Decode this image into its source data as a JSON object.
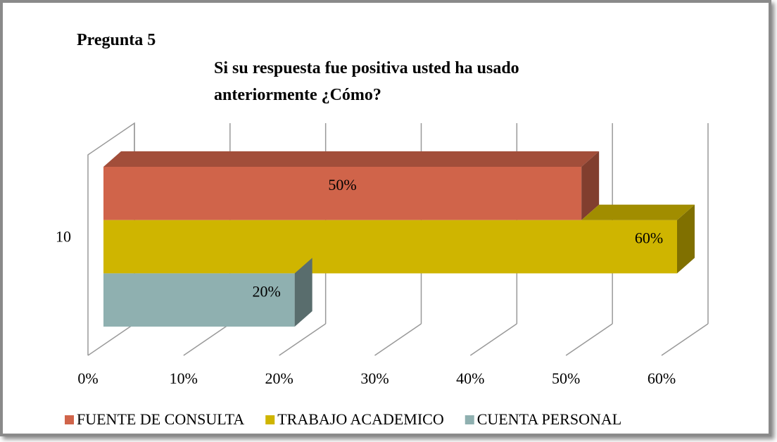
{
  "chart_data": {
    "type": "bar3d_horizontal",
    "heading": "Pregunta 5",
    "title": "Si su respuesta fue positiva usted ha usado anteriormente ¿Cómo?",
    "categories": [
      "10"
    ],
    "series": [
      {
        "name": "FUENTE DE CONSULTA",
        "color": "#d0644a",
        "values": [
          50
        ],
        "value_labels": [
          "50%"
        ]
      },
      {
        "name": "TRABAJO ACADEMICO",
        "color": "#cfb500",
        "values": [
          60
        ],
        "value_labels": [
          "60%"
        ]
      },
      {
        "name": "CUENTA PERSONAL",
        "color": "#8fb0b0",
        "values": [
          20
        ],
        "value_labels": [
          "20%"
        ]
      }
    ],
    "xlim": [
      0,
      60
    ],
    "xticks": [
      {
        "value": 0,
        "label": "0%"
      },
      {
        "value": 10,
        "label": "10%"
      },
      {
        "value": 20,
        "label": "20%"
      },
      {
        "value": 30,
        "label": "30%"
      },
      {
        "value": 40,
        "label": "40%"
      },
      {
        "value": 50,
        "label": "50%"
      },
      {
        "value": 60,
        "label": "60%"
      }
    ],
    "grid": true,
    "legend": "bottom"
  }
}
